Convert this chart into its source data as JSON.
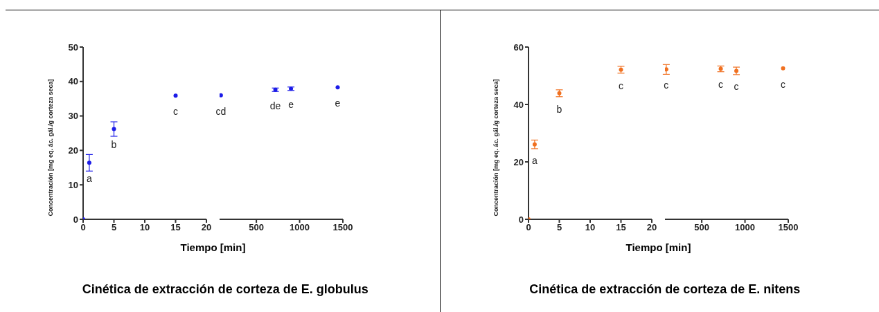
{
  "chart_data": [
    {
      "type": "scatter",
      "title": "Cinética de extracción de corteza de E. globulus",
      "xlabel": "Tiempo [min]",
      "ylabel": "Concentración [mg eq. ác. gál./g corteza seca]",
      "color": "#1c1ce8",
      "marker": "circle",
      "x": [
        0,
        1,
        5,
        15
      ],
      "values": [
        0,
        16.4,
        26.2,
        35.9
      ],
      "errors": [
        null,
        2.4,
        2.1,
        null
      ],
      "xlim": [
        0,
        20
      ],
      "xticks": [
        0,
        5,
        10,
        15,
        20
      ],
      "ylim": [
        0,
        50
      ],
      "yticks": [
        0,
        10,
        20,
        30,
        40,
        50
      ],
      "annotations": [
        {
          "text": "a",
          "x": 1,
          "y": 16.4
        },
        {
          "text": "b",
          "x": 5,
          "y": 26.2
        },
        {
          "text": "c",
          "x": 15,
          "y": 35.9
        }
      ]
    },
    {
      "type": "scatter",
      "color": "#1c1ce8",
      "marker": "circle",
      "x": [
        90,
        720,
        900,
        1440
      ],
      "values": [
        36.0,
        37.6,
        37.9,
        38.3
      ],
      "errors": [
        null,
        0.5,
        0.5,
        null
      ],
      "xlim": [
        75,
        1500
      ],
      "xticks": [
        500,
        1000,
        1500
      ],
      "ylim": [
        0,
        50
      ],
      "tick_labels": "x",
      "annotations": [
        {
          "text": "cd",
          "x": 90,
          "y": 36.0
        },
        {
          "text": "de",
          "x": 720,
          "y": 37.6
        },
        {
          "text": "e",
          "x": 900,
          "y": 37.9
        },
        {
          "text": "e",
          "x": 1440,
          "y": 38.3
        }
      ]
    },
    {
      "type": "scatter",
      "title": "Cinética de extracción de corteza de E. nitens",
      "xlabel": "Tiempo [min]",
      "ylabel": "Concentración [mg eq. ác. gál./g corteza seca]",
      "color": "#f07020",
      "marker": "circle",
      "x": [
        0,
        1,
        5,
        15
      ],
      "values": [
        0,
        26.1,
        43.9,
        52.1
      ],
      "errors": [
        null,
        1.5,
        1.2,
        1.2
      ],
      "xlim": [
        0,
        20
      ],
      "xticks": [
        0,
        5,
        10,
        15,
        20
      ],
      "ylim": [
        0,
        60
      ],
      "yticks": [
        0,
        20,
        40,
        60
      ],
      "annotations": [
        {
          "text": "a",
          "x": 1,
          "y": 26.1
        },
        {
          "text": "b",
          "x": 5,
          "y": 43.9
        },
        {
          "text": "c",
          "x": 15,
          "y": 52.1
        }
      ]
    },
    {
      "type": "scatter",
      "color": "#f07020",
      "marker": "circle",
      "x": [
        90,
        720,
        900,
        1440
      ],
      "values": [
        52.2,
        52.4,
        51.7,
        52.6
      ],
      "errors": [
        1.7,
        1.0,
        1.3,
        null
      ],
      "xlim": [
        75,
        1500
      ],
      "xticks": [
        500,
        1000,
        1500
      ],
      "ylim": [
        0,
        60
      ],
      "tick_labels": "x",
      "annotations": [
        {
          "text": "c",
          "x": 90,
          "y": 52.2
        },
        {
          "text": "c",
          "x": 720,
          "y": 52.4
        },
        {
          "text": "c",
          "x": 900,
          "y": 51.7
        },
        {
          "text": "c",
          "x": 1440,
          "y": 52.6
        }
      ]
    }
  ]
}
